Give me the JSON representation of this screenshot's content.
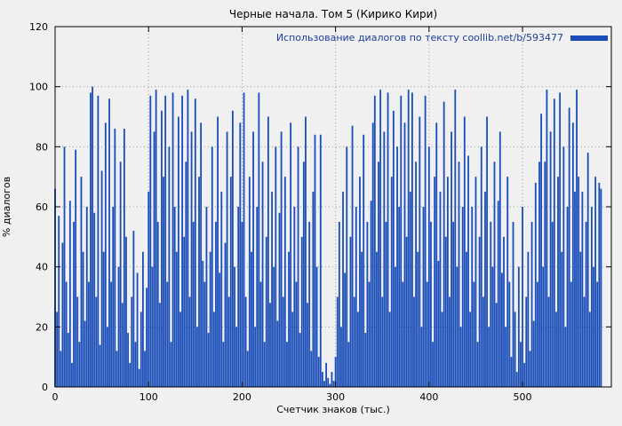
{
  "chart_data": {
    "type": "bar",
    "title": "Черные начала. Том 5 (Кирико Кири)",
    "legend": "Использование диалогов по тексту coollib.net/b/593477",
    "xlabel": "Счетчик знаков (тыс.)",
    "ylabel": "% диалогов",
    "xlim": [
      0,
      595
    ],
    "ylim": [
      0,
      120
    ],
    "xticks": [
      0,
      100,
      200,
      300,
      400,
      500
    ],
    "yticks": [
      0,
      20,
      40,
      60,
      80,
      100,
      120
    ],
    "grid": true,
    "legend_position": "top-right",
    "bar_color": "#1a4db8",
    "legend_text_color": "#1c3d99",
    "x_start": 0,
    "x_step": 2,
    "values": [
      66,
      25,
      57,
      12,
      48,
      80,
      35,
      18,
      62,
      8,
      55,
      79,
      30,
      15,
      70,
      45,
      22,
      60,
      35,
      98,
      100,
      58,
      30,
      97,
      14,
      72,
      45,
      88,
      20,
      96,
      35,
      60,
      86,
      12,
      40,
      75,
      28,
      86,
      50,
      18,
      8,
      30,
      52,
      15,
      38,
      6,
      25,
      45,
      12,
      33,
      65,
      97,
      40,
      85,
      99,
      55,
      28,
      92,
      70,
      97,
      35,
      80,
      15,
      98,
      60,
      45,
      90,
      25,
      97,
      50,
      75,
      99,
      30,
      85,
      55,
      96,
      20,
      70,
      88,
      42,
      35,
      60,
      18,
      45,
      80,
      25,
      55,
      90,
      38,
      65,
      15,
      48,
      85,
      30,
      70,
      92,
      40,
      20,
      60,
      88,
      55,
      98,
      30,
      12,
      70,
      45,
      85,
      20,
      60,
      98,
      35,
      75,
      15,
      50,
      90,
      28,
      65,
      40,
      80,
      22,
      58,
      85,
      30,
      70,
      15,
      45,
      88,
      25,
      60,
      35,
      80,
      18,
      50,
      75,
      90,
      28,
      55,
      12,
      65,
      84,
      40,
      10,
      84,
      5,
      2,
      8,
      3,
      1,
      5,
      2,
      10,
      30,
      55,
      20,
      65,
      38,
      80,
      15,
      50,
      87,
      30,
      60,
      25,
      70,
      45,
      84,
      18,
      55,
      35,
      62,
      88,
      97,
      45,
      75,
      99,
      30,
      85,
      55,
      98,
      25,
      70,
      92,
      40,
      80,
      60,
      97,
      35,
      88,
      50,
      99,
      65,
      98,
      30,
      75,
      45,
      90,
      20,
      60,
      97,
      35,
      80,
      55,
      15,
      70,
      88,
      42,
      65,
      25,
      95,
      50,
      70,
      30,
      85,
      55,
      99,
      40,
      75,
      20,
      60,
      90,
      45,
      77,
      25,
      60,
      35,
      70,
      15,
      50,
      80,
      30,
      65,
      90,
      20,
      55,
      40,
      75,
      28,
      62,
      85,
      38,
      50,
      20,
      70,
      35,
      10,
      55,
      25,
      5,
      40,
      15,
      60,
      8,
      30,
      45,
      12,
      55,
      22,
      68,
      35,
      75,
      91,
      40,
      75,
      99,
      30,
      85,
      55,
      96,
      25,
      70,
      98,
      45,
      80,
      20,
      60,
      93,
      35,
      88,
      65,
      99,
      70,
      45,
      65,
      30,
      55,
      78,
      25,
      60,
      40,
      70,
      35,
      68,
      66
    ]
  }
}
